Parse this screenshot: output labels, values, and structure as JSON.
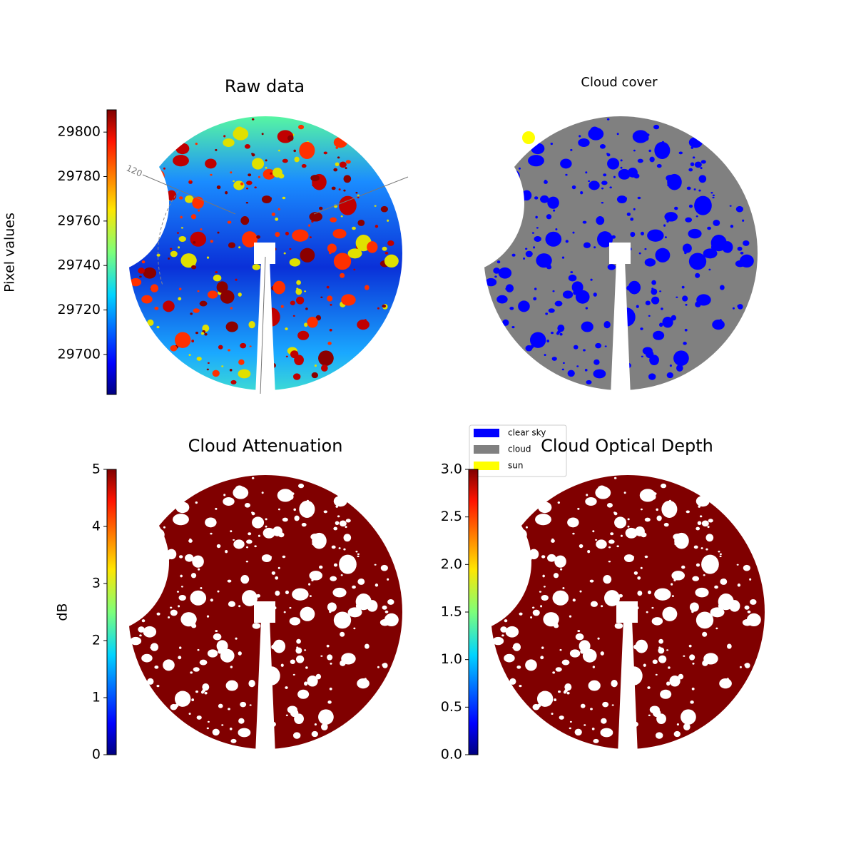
{
  "chart_data": [
    {
      "type": "image",
      "title": "Raw data",
      "colorbar": {
        "label": "Pixel values",
        "lim": [
          29682,
          29810
        ],
        "ticks": [
          29700,
          29720,
          29740,
          29760,
          29780,
          29800
        ]
      },
      "annotations": [
        "120"
      ]
    },
    {
      "type": "image",
      "title": "Cloud cover",
      "legend": [
        {
          "name": "clear sky",
          "color": "#0000ff"
        },
        {
          "name": "cloud",
          "color": "#808080"
        },
        {
          "name": "sun",
          "color": "#ffff00"
        }
      ]
    },
    {
      "type": "image",
      "title": "Cloud Attenuation",
      "colorbar": {
        "label": "dB",
        "lim": [
          0,
          5
        ],
        "ticks": [
          0,
          1,
          2,
          3,
          4,
          5
        ]
      }
    },
    {
      "type": "image",
      "title": "Cloud Optical Depth",
      "colorbar": {
        "lim": [
          0,
          3
        ],
        "ticks": [
          {
            "value": 0,
            "label": "0.0"
          },
          0.5,
          {
            "value": 1,
            "label": "1.0"
          },
          1.5,
          {
            "value": 2,
            "label": "2.0"
          },
          2.5,
          {
            "value": 3,
            "label": "3.0"
          }
        ]
      }
    }
  ]
}
